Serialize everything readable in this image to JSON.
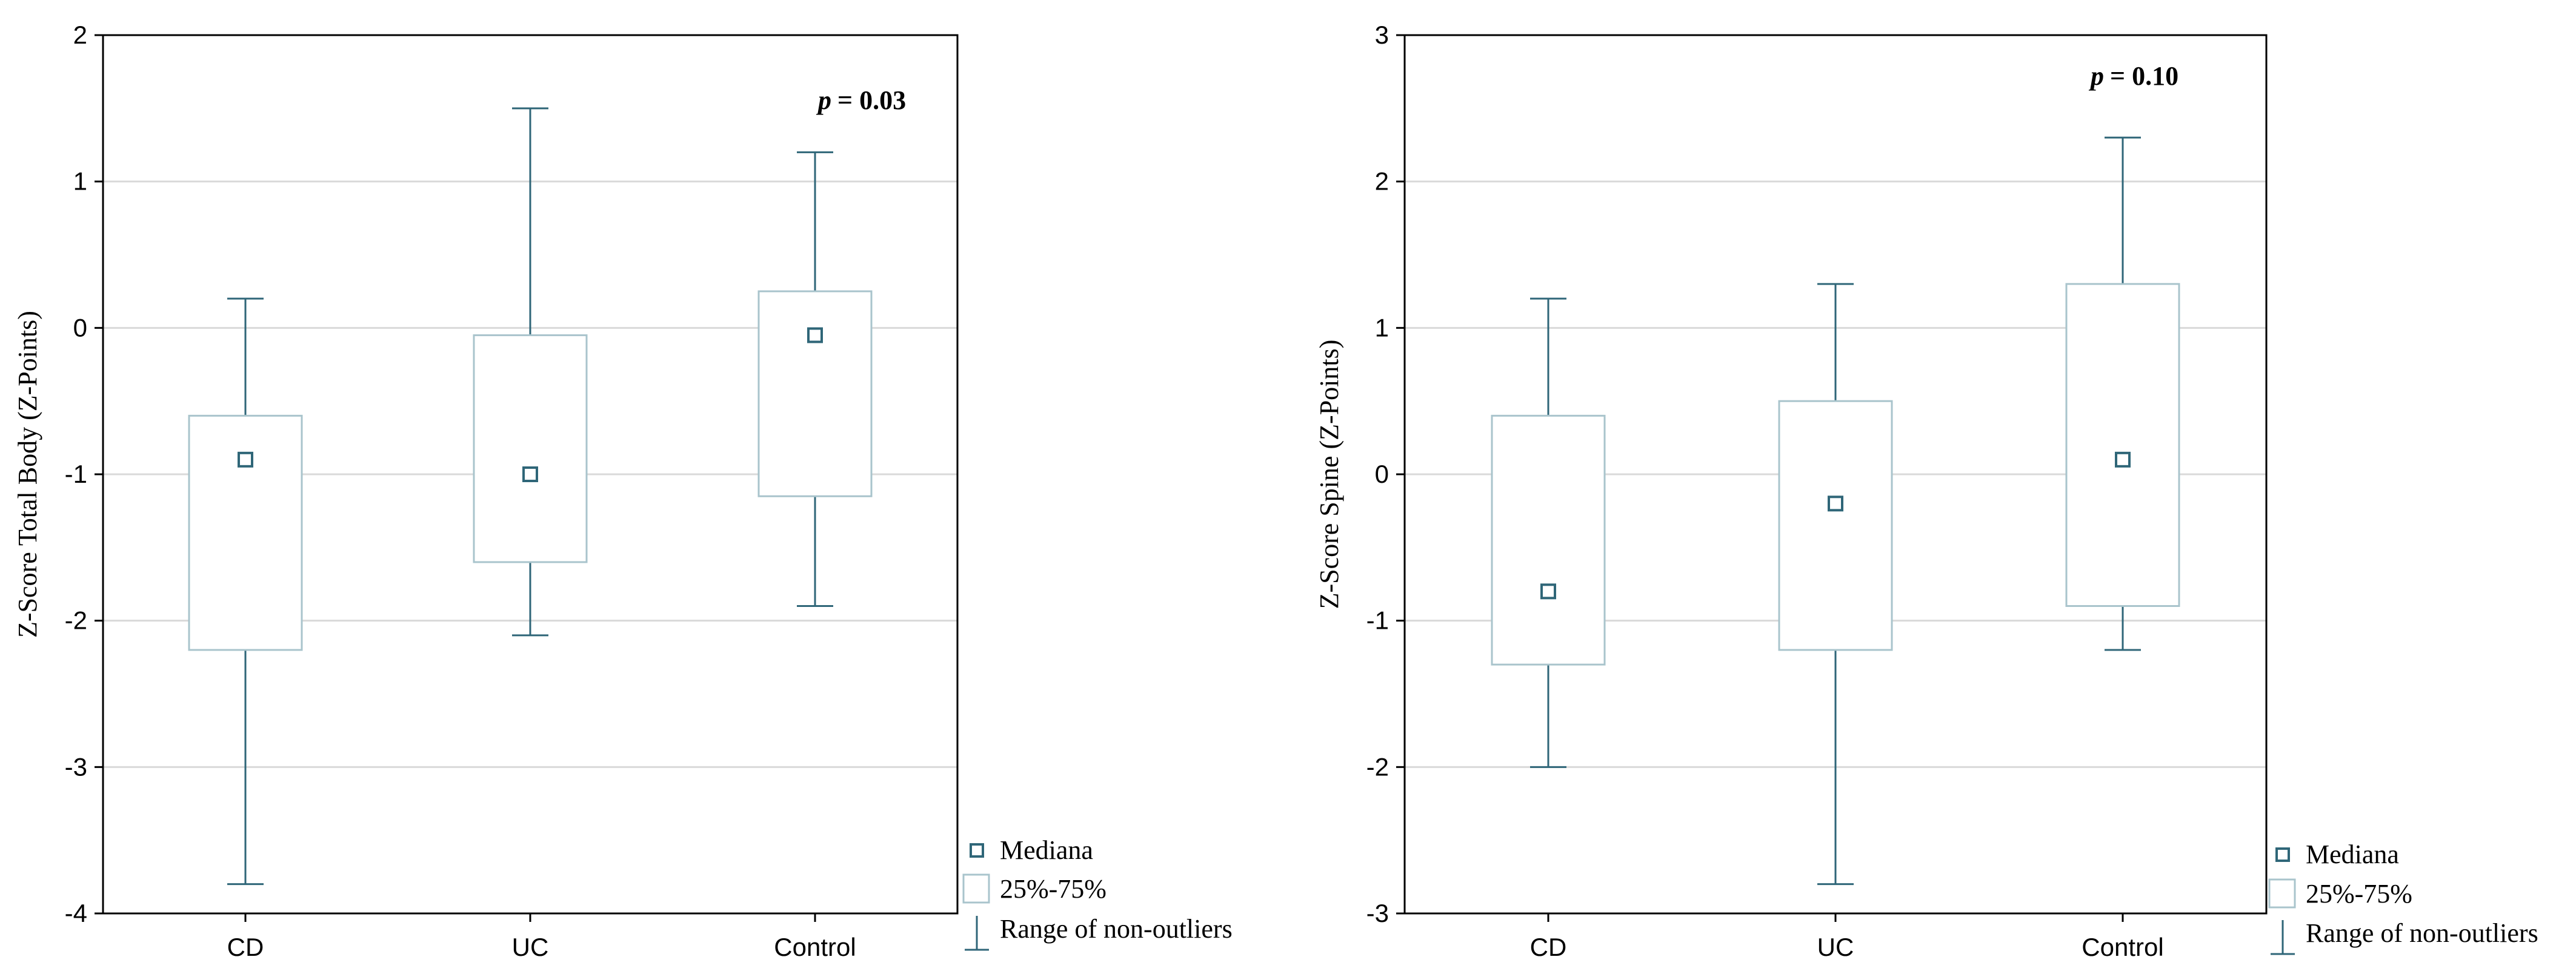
{
  "colors": {
    "whisker": "#2f6678",
    "box": "#a9c4cc",
    "median": "#2f6678",
    "grid": "#d9d9d9",
    "frame": "#000000"
  },
  "chart_data": [
    {
      "type": "box",
      "ylabel": "Z-Score Total Body (Z-Points)",
      "ylim": [
        -4,
        2
      ],
      "yticks": [
        "2",
        "1",
        "0",
        "-1",
        "-2",
        "-3",
        "-4"
      ],
      "ytick_values": [
        2,
        1,
        0,
        -1,
        -2,
        -3,
        -4
      ],
      "categories": [
        "CD",
        "UC",
        "Control"
      ],
      "p_symbol": "p",
      "p_value": "= 0.03",
      "boxes": [
        {
          "category": "CD",
          "median": -0.9,
          "q1": -2.2,
          "q3": -0.6,
          "min": -3.8,
          "max": 0.2
        },
        {
          "category": "UC",
          "median": -1.0,
          "q1": -1.6,
          "q3": -0.05,
          "min": -2.1,
          "max": 1.5
        },
        {
          "category": "Control",
          "median": -0.05,
          "q1": -1.15,
          "q3": 0.25,
          "min": -1.9,
          "max": 1.2
        }
      ],
      "legend": {
        "median": "Mediana",
        "box": "25%-75%",
        "range": "Range of non-outliers"
      }
    },
    {
      "type": "box",
      "ylabel": "Z-Score Spine (Z-Points)",
      "ylim": [
        -3,
        3
      ],
      "yticks": [
        "3",
        "2",
        "1",
        "0",
        "-1",
        "-2",
        "-3"
      ],
      "ytick_values": [
        3,
        2,
        1,
        0,
        -1,
        -2,
        -3
      ],
      "categories": [
        "CD",
        "UC",
        "Control"
      ],
      "p_symbol": "p",
      "p_value": "= 0.10",
      "boxes": [
        {
          "category": "CD",
          "median": -0.8,
          "q1": -1.3,
          "q3": 0.4,
          "min": -2.0,
          "max": 1.2
        },
        {
          "category": "UC",
          "median": -0.2,
          "q1": -1.2,
          "q3": 0.5,
          "min": -2.8,
          "max": 1.3
        },
        {
          "category": "Control",
          "median": 0.1,
          "q1": -0.9,
          "q3": 1.3,
          "min": -1.2,
          "max": 2.3
        }
      ],
      "legend": {
        "median": "Mediana",
        "box": "25%-75%",
        "range": "Range of non-outliers"
      }
    }
  ]
}
